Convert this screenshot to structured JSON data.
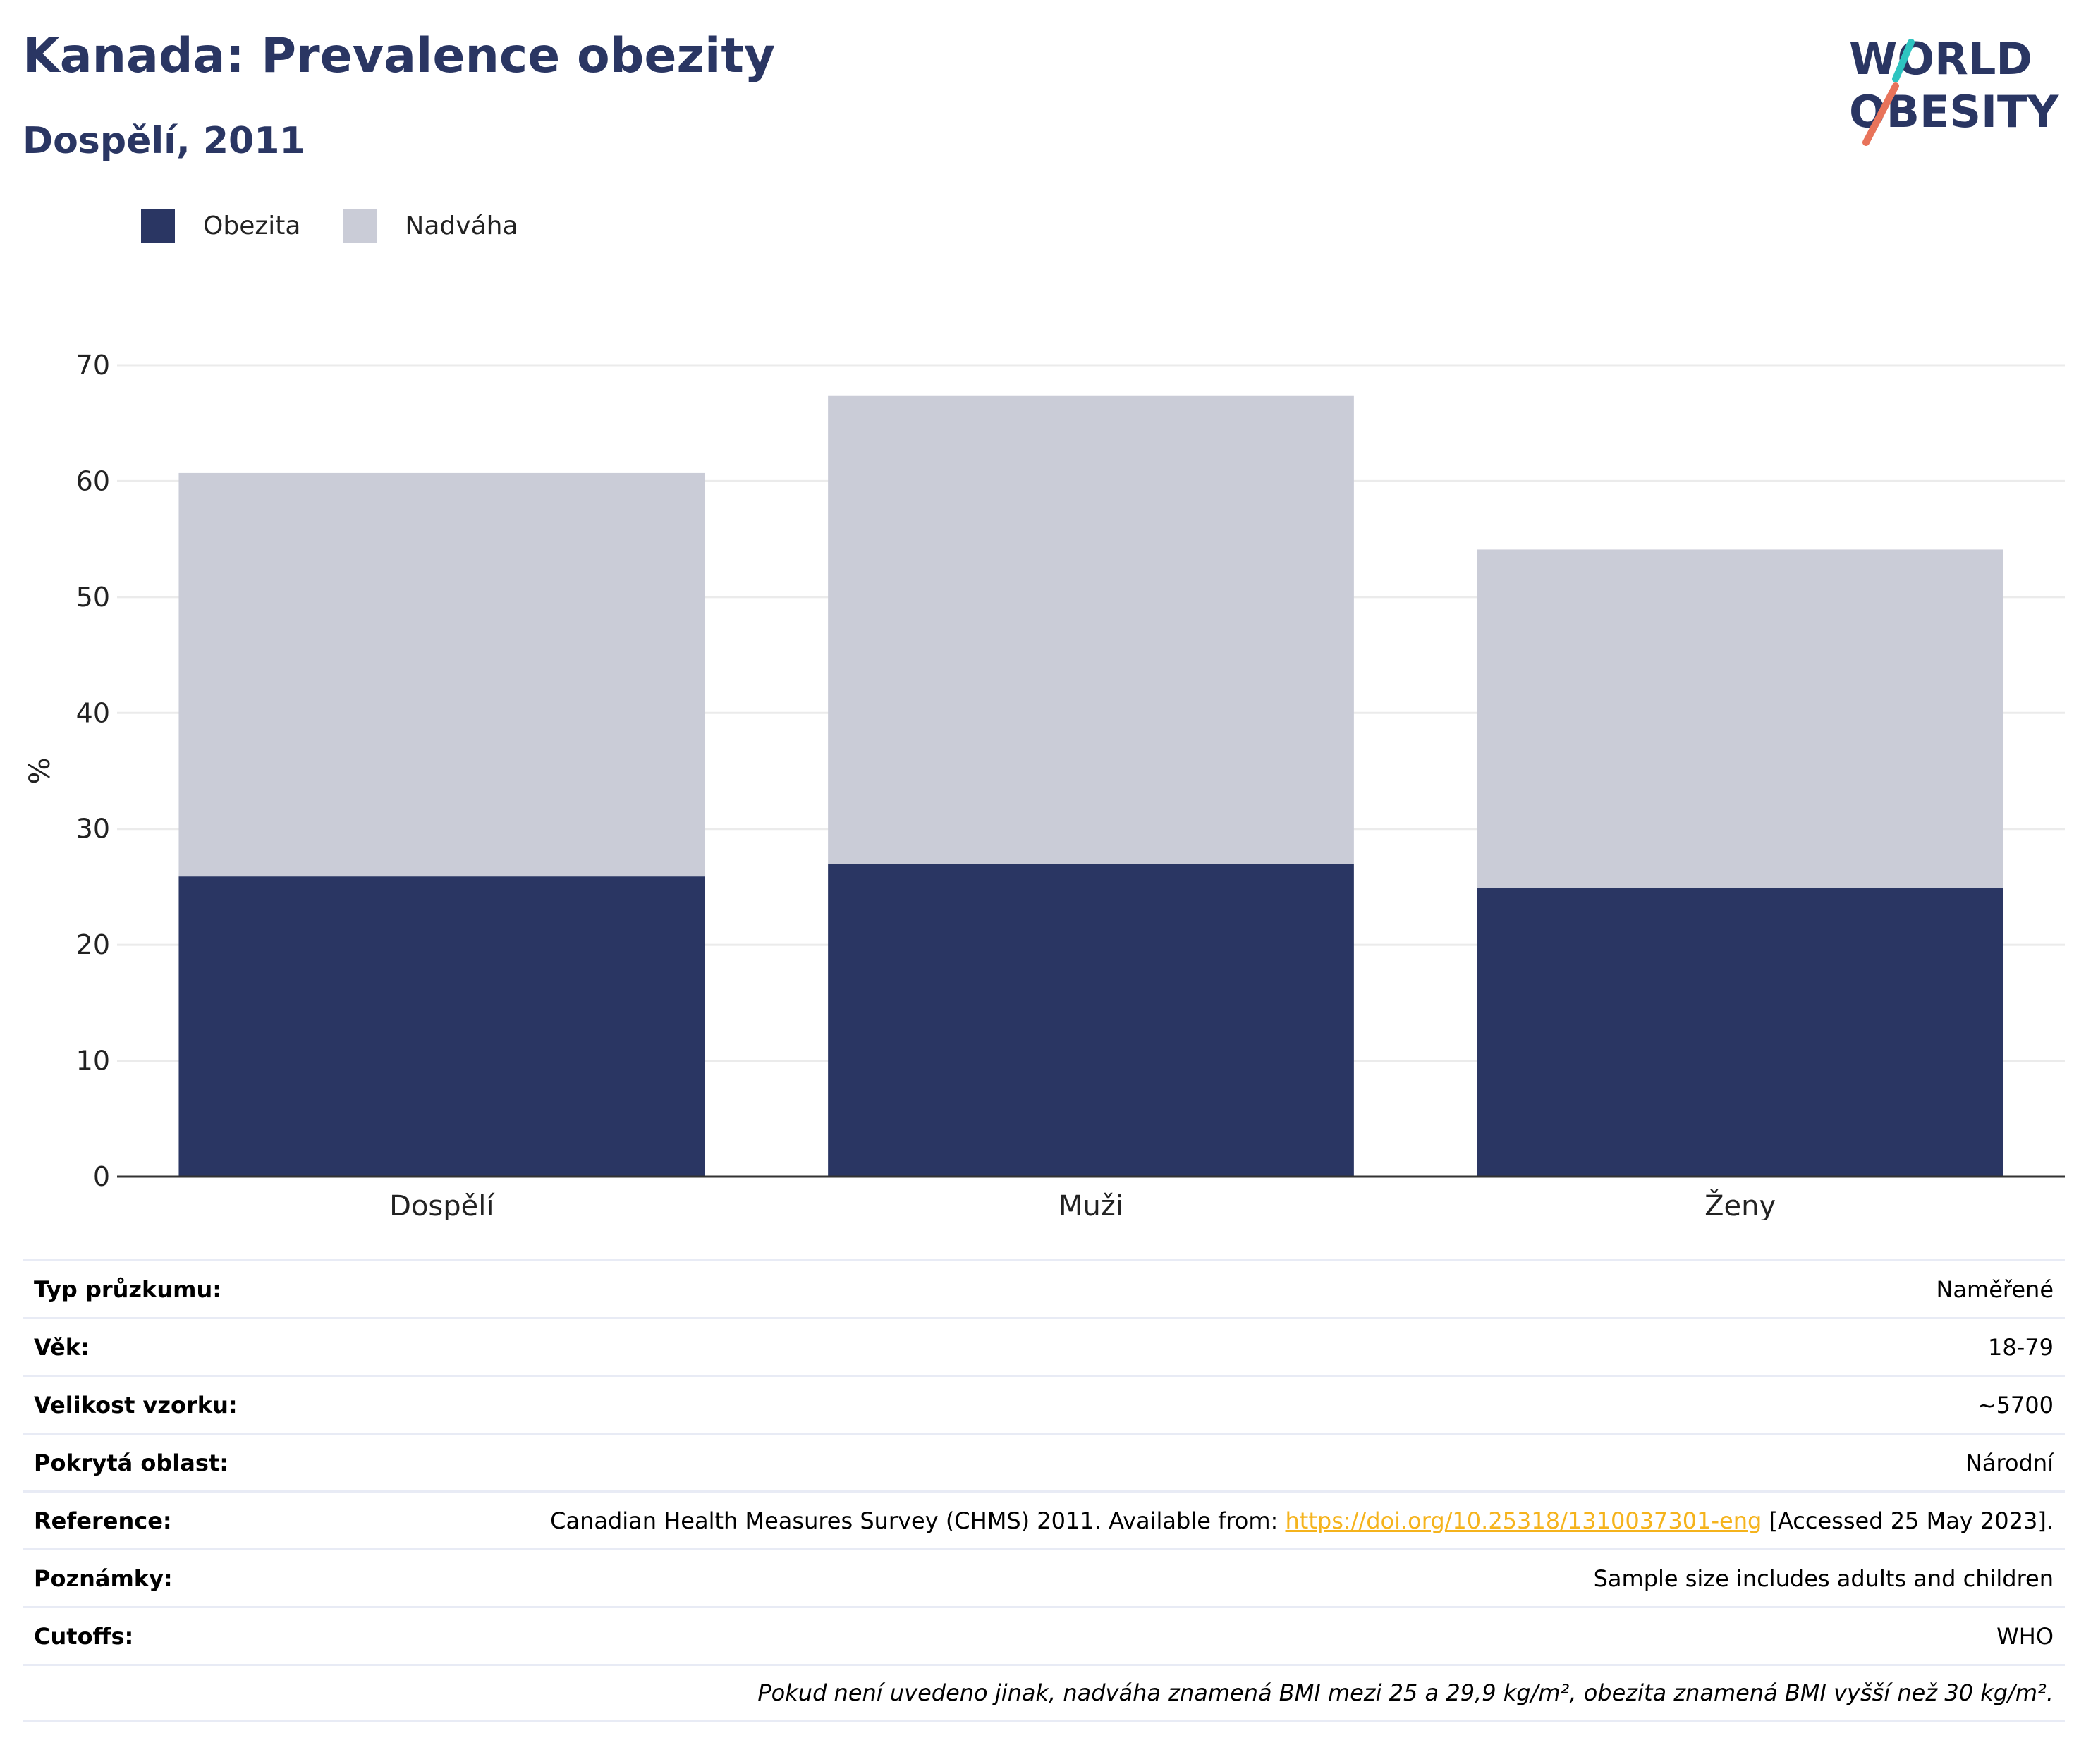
{
  "header": {
    "title": "Kanada: Prevalence obezity",
    "subtitle": "Dospělí, 2011"
  },
  "logo": {
    "line1": "WORLD",
    "line2": "OBESITY",
    "colors": {
      "text": "#2a3663",
      "teal": "#2ec4c0",
      "coral": "#e8735a"
    }
  },
  "legend": [
    {
      "label": "Obezita",
      "color": "#2a3663"
    },
    {
      "label": "Nadváha",
      "color": "#caccd7"
    }
  ],
  "chart_data": {
    "type": "bar",
    "stacked": true,
    "categories": [
      "Dospělí",
      "Muži",
      "Ženy"
    ],
    "series": [
      {
        "name": "Obezita",
        "color": "#2a3663",
        "values": [
          25.9,
          27.0,
          24.9
        ]
      },
      {
        "name": "Nadváha",
        "color": "#caccd7",
        "values": [
          34.8,
          40.4,
          29.2
        ]
      }
    ],
    "ylabel": "%",
    "ylim": [
      0,
      70
    ],
    "yticks": [
      0,
      10,
      20,
      30,
      40,
      50,
      60,
      70
    ],
    "grid": true,
    "legend_position": "top-left"
  },
  "info": {
    "rows": [
      {
        "key": "Typ průzkumu:",
        "value": "Naměřené"
      },
      {
        "key": "Věk:",
        "value": "18-79"
      },
      {
        "key": "Velikost vzorku:",
        "value": "~5700"
      },
      {
        "key": "Pokrytá oblast:",
        "value": "Národní"
      }
    ],
    "reference": {
      "key": "Reference:",
      "before": "Canadian Health Measures Survey (CHMS) 2011. Available from: ",
      "link": "https://doi.org/10.25318/1310037301-eng",
      "after": " [Accessed 25 May 2023]."
    },
    "rows2": [
      {
        "key": "Poznámky:",
        "value": "Sample size includes adults and children"
      },
      {
        "key": "Cutoffs:",
        "value": "WHO"
      }
    ],
    "footnote": "Pokud není uvedeno jinak, nadváha znamená BMI mezi 25 a 29,9 kg/m², obezita znamená BMI vyšší než 30 kg/m²."
  }
}
